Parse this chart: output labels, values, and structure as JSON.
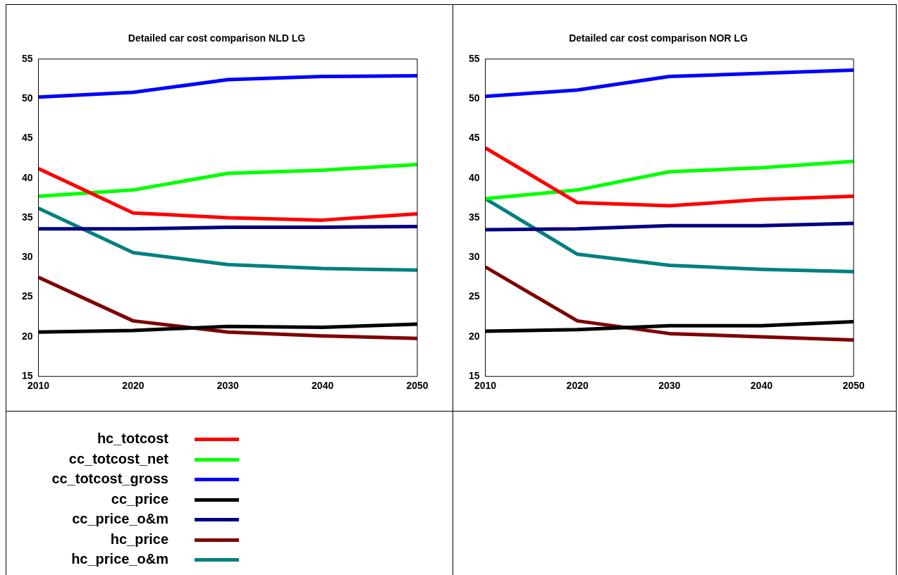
{
  "chart_data": [
    {
      "type": "line",
      "title": "Detailed car cost comparison NLD LG",
      "x": [
        2010,
        2020,
        2030,
        2040,
        2050
      ],
      "xlim": [
        2010,
        2050
      ],
      "xticks": [
        2010,
        2020,
        2030,
        2040,
        2050
      ],
      "ylim": [
        15,
        55
      ],
      "yticks": [
        15,
        20,
        25,
        30,
        35,
        40,
        45,
        50,
        55
      ],
      "grid": false,
      "legend": "bottom",
      "marker": "none",
      "line_style": "solid",
      "series": [
        {
          "name": "hc_totcost",
          "color": "#ff0000",
          "values": [
            41.2,
            35.6,
            35.0,
            34.7,
            35.5
          ]
        },
        {
          "name": "cc_totcost_net",
          "color": "#00ff00",
          "values": [
            37.7,
            38.5,
            40.6,
            41.0,
            41.7
          ]
        },
        {
          "name": "cc_totcost_gross",
          "color": "#0000ff",
          "values": [
            50.2,
            50.8,
            52.4,
            52.8,
            52.9
          ]
        },
        {
          "name": "cc_price",
          "color": "#000000",
          "values": [
            20.6,
            20.8,
            21.3,
            21.2,
            21.6
          ]
        },
        {
          "name": "cc_price_o&m",
          "color": "#000080",
          "values": [
            33.6,
            33.6,
            33.8,
            33.8,
            33.9
          ]
        },
        {
          "name": "hc_price",
          "color": "#800000",
          "values": [
            27.5,
            22.0,
            20.6,
            20.1,
            19.8
          ]
        },
        {
          "name": "hc_price_o&m",
          "color": "#008080",
          "values": [
            36.2,
            30.6,
            29.1,
            28.6,
            28.4
          ]
        }
      ]
    },
    {
      "type": "line",
      "title": "Detailed car cost comparison NOR LG",
      "x": [
        2010,
        2020,
        2030,
        2040,
        2050
      ],
      "xlim": [
        2010,
        2050
      ],
      "xticks": [
        2010,
        2020,
        2030,
        2040,
        2050
      ],
      "ylim": [
        15,
        55
      ],
      "yticks": [
        15,
        20,
        25,
        30,
        35,
        40,
        45,
        50,
        55
      ],
      "grid": false,
      "marker": "none",
      "line_style": "solid",
      "series": [
        {
          "color": "#ff0000",
          "values": [
            43.8,
            36.9,
            36.5,
            37.3,
            37.7
          ]
        },
        {
          "color": "#00ff00",
          "values": [
            37.4,
            38.5,
            40.8,
            41.3,
            42.1
          ]
        },
        {
          "color": "#0000ff",
          "values": [
            50.3,
            51.1,
            52.8,
            53.2,
            53.6
          ]
        },
        {
          "color": "#000000",
          "values": [
            20.7,
            20.9,
            21.4,
            21.4,
            21.9
          ]
        },
        {
          "color": "#000080",
          "values": [
            33.5,
            33.6,
            34.0,
            34.0,
            34.3
          ]
        },
        {
          "color": "#800000",
          "values": [
            28.8,
            22.0,
            20.4,
            20.0,
            19.6
          ]
        },
        {
          "color": "#008080",
          "values": [
            37.4,
            30.4,
            29.0,
            28.5,
            28.2
          ]
        }
      ]
    }
  ]
}
